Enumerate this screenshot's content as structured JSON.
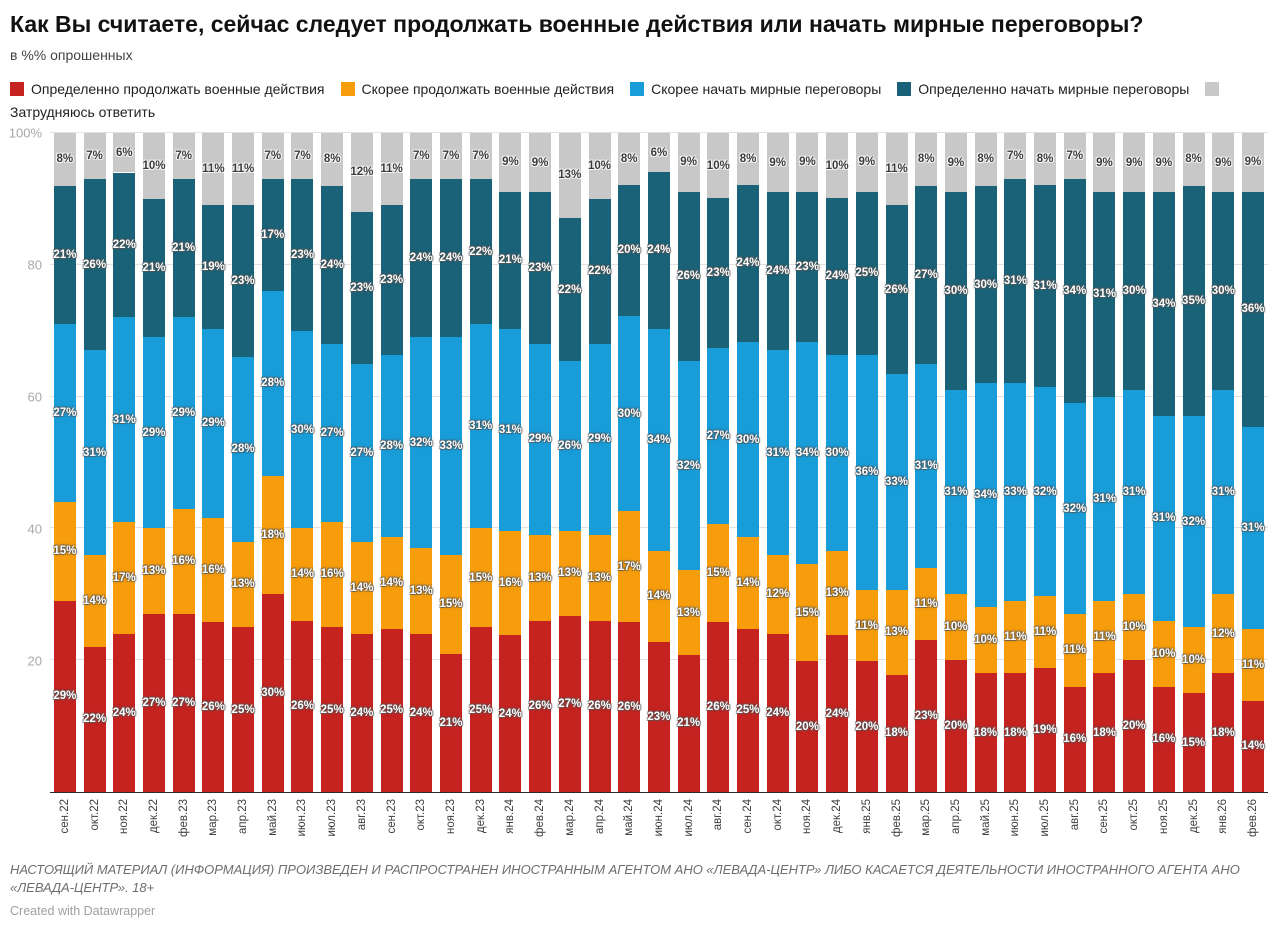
{
  "header": {
    "title": "Как Вы считаете, сейчас следует продолжать военные действия или начать мирные переговоры?",
    "subtitle": "в %% опрошенных"
  },
  "footer": {
    "note": "НАСТОЯЩИЙ МАТЕРИАЛ (ИНФОРМАЦИЯ) ПРОИЗВЕДЕН И РАСПРОСТРАНЕН ИНОСТРАННЫМ АГЕНТОМ АНО «ЛЕВАДА-ЦЕНТР» ЛИБО КАСАЕТСЯ ДЕЯТЕЛЬНОСТИ ИНОСТРАННОГО АГЕНТА АНО «ЛЕВАДА-ЦЕНТР». 18+",
    "credit": "Created with Datawrapper"
  },
  "chart_data": {
    "type": "bar",
    "stacked": true,
    "unit": "%",
    "grid": true,
    "legend_position": "top",
    "ylim": [
      0,
      100
    ],
    "yticks": [
      {
        "value": 20,
        "label": "20"
      },
      {
        "value": 40,
        "label": "40"
      },
      {
        "value": 60,
        "label": "60"
      },
      {
        "value": 80,
        "label": "80"
      },
      {
        "value": 100,
        "label": "100%"
      }
    ],
    "categories": [
      "сен.22",
      "окт.22",
      "ноя.22",
      "дек.22",
      "фев.23",
      "мар.23",
      "апр.23",
      "май.23",
      "июн.23",
      "июл.23",
      "авг.23",
      "сен.23",
      "окт.23",
      "ноя.23",
      "дек.23",
      "янв.24",
      "фев.24",
      "мар.24",
      "апр.24",
      "май.24",
      "июн.24",
      "июл.24",
      "авг.24",
      "сен.24",
      "окт.24",
      "ноя.24",
      "дек.24",
      "янв.25",
      "фев.25",
      "мар.25",
      "апр.25",
      "май.25",
      "июн.25",
      "июл.25",
      "авг.25",
      "сен.25",
      "окт.25",
      "ноя.25",
      "дек.25",
      "янв.26",
      "фев.26"
    ],
    "series": [
      {
        "name": "Определенно продолжать военные действия",
        "color": "#c42320",
        "label_style": "light",
        "values": [
          29,
          22,
          24,
          27,
          27,
          26,
          25,
          30,
          26,
          25,
          24,
          25,
          24,
          21,
          25,
          24,
          26,
          27,
          26,
          26,
          23,
          21,
          26,
          25,
          24,
          20,
          24,
          20,
          18,
          23,
          20,
          18,
          18,
          19,
          16,
          18,
          20,
          16,
          15,
          18,
          14
        ]
      },
      {
        "name": "Скорее продолжать военные действия",
        "color": "#f79d0c",
        "label_style": "light",
        "values": [
          15,
          14,
          17,
          13,
          16,
          16,
          13,
          18,
          14,
          16,
          14,
          14,
          13,
          15,
          15,
          16,
          13,
          13,
          13,
          17,
          14,
          13,
          15,
          14,
          12,
          15,
          13,
          11,
          13,
          11,
          10,
          10,
          11,
          11,
          11,
          11,
          10,
          10,
          10,
          12,
          11
        ]
      },
      {
        "name": "Скорее начать мирные переговоры",
        "color": "#189dd9",
        "label_style": "light",
        "values": [
          27,
          31,
          31,
          29,
          29,
          29,
          28,
          28,
          30,
          27,
          27,
          28,
          32,
          33,
          31,
          31,
          29,
          26,
          29,
          30,
          34,
          32,
          27,
          30,
          31,
          34,
          30,
          36,
          33,
          31,
          31,
          34,
          33,
          32,
          32,
          31,
          31,
          31,
          32,
          31,
          31
        ]
      },
      {
        "name": "Определенно начать мирные переговоры",
        "color": "#1a6278",
        "label_style": "light",
        "values": [
          21,
          26,
          22,
          21,
          21,
          19,
          23,
          17,
          23,
          24,
          23,
          23,
          24,
          24,
          22,
          21,
          23,
          22,
          22,
          20,
          24,
          26,
          23,
          24,
          24,
          23,
          24,
          25,
          26,
          27,
          30,
          30,
          31,
          31,
          34,
          31,
          30,
          34,
          35,
          30,
          36
        ]
      },
      {
        "name": "Затрудняюсь ответить",
        "color": "#c8c8c8",
        "label_style": "dark",
        "values": [
          8,
          7,
          6,
          10,
          7,
          11,
          11,
          7,
          7,
          8,
          12,
          11,
          7,
          7,
          7,
          9,
          9,
          13,
          10,
          8,
          6,
          9,
          10,
          8,
          9,
          9,
          10,
          9,
          11,
          8,
          9,
          8,
          7,
          8,
          7,
          9,
          9,
          9,
          8,
          9,
          9
        ]
      }
    ]
  }
}
